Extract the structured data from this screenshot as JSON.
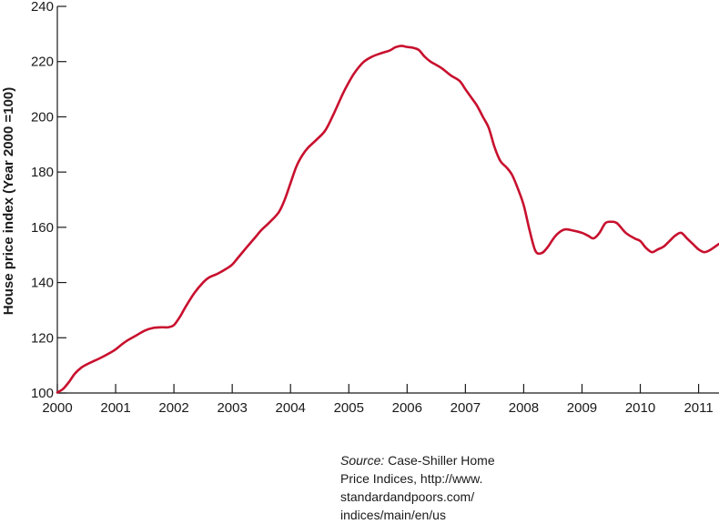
{
  "chart_data": {
    "type": "line",
    "title": "",
    "xlabel": "",
    "ylabel": "House price index (Year 2000 =100)",
    "xlim": [
      2000,
      2011.35
    ],
    "ylim": [
      100,
      240
    ],
    "y_ticks": [
      "100",
      "120",
      "140",
      "160",
      "180",
      "200",
      "220",
      "240"
    ],
    "x_ticks": [
      "2000",
      "2001",
      "2002",
      "2003",
      "2004",
      "2005",
      "2006",
      "2007",
      "2008",
      "2009",
      "2010",
      "2011"
    ],
    "grid": false,
    "line_color": "#c8102e",
    "series": [
      {
        "x": [
          2000.0,
          2000.1,
          2000.2,
          2000.3,
          2000.4,
          2000.5,
          2000.6,
          2000.75,
          2000.9,
          2001.0,
          2001.1,
          2001.2,
          2001.35,
          2001.5,
          2001.65,
          2001.8,
          2001.9,
          2002.0,
          2002.1,
          2002.2,
          2002.35,
          2002.5,
          2002.6,
          2002.75,
          2002.9,
          2003.0,
          2003.1,
          2003.25,
          2003.4,
          2003.5,
          2003.65,
          2003.8,
          2003.9,
          2004.0,
          2004.1,
          2004.2,
          2004.3,
          2004.45,
          2004.6,
          2004.75,
          2004.9,
          2005.0,
          2005.1,
          2005.25,
          2005.4,
          2005.55,
          2005.7,
          2005.8,
          2005.9,
          2006.0,
          2006.1,
          2006.2,
          2006.3,
          2006.4,
          2006.5,
          2006.6,
          2006.75,
          2006.9,
          2007.0,
          2007.1,
          2007.2,
          2007.3,
          2007.4,
          2007.5,
          2007.6,
          2007.7,
          2007.8,
          2007.9,
          2008.0,
          2008.1,
          2008.2,
          2008.3,
          2008.4,
          2008.55,
          2008.7,
          2008.85,
          2009.0,
          2009.1,
          2009.2,
          2009.3,
          2009.4,
          2009.5,
          2009.6,
          2009.75,
          2009.9,
          2010.0,
          2010.1,
          2010.2,
          2010.3,
          2010.4,
          2010.5,
          2010.6,
          2010.7,
          2010.8,
          2010.9,
          2011.0,
          2011.1,
          2011.2,
          2011.35
        ],
        "y": [
          100.2,
          101.5,
          104.0,
          107.0,
          109.0,
          110.3,
          111.3,
          112.8,
          114.5,
          115.8,
          117.5,
          119.0,
          120.8,
          122.6,
          123.6,
          123.8,
          123.8,
          124.6,
          127.5,
          131.2,
          136.2,
          140.0,
          141.8,
          143.2,
          145.0,
          146.5,
          149.0,
          152.8,
          156.5,
          159.0,
          162.0,
          165.5,
          170.0,
          176.0,
          182.0,
          186.0,
          188.8,
          191.8,
          195.2,
          201.5,
          208.5,
          212.5,
          216.0,
          219.8,
          221.8,
          223.0,
          224.0,
          225.2,
          225.7,
          225.3,
          225.0,
          224.2,
          221.8,
          220.0,
          218.8,
          217.5,
          215.0,
          213.0,
          210.0,
          207.0,
          204.0,
          200.0,
          196.0,
          189.0,
          184.0,
          181.8,
          179.0,
          174.0,
          168.0,
          159.0,
          151.5,
          150.6,
          152.5,
          157.0,
          159.2,
          158.8,
          158.0,
          157.0,
          156.0,
          158.0,
          161.5,
          162.0,
          161.5,
          158.0,
          156.0,
          155.0,
          152.5,
          151.0,
          152.0,
          153.0,
          155.0,
          157.0,
          158.0,
          156.0,
          154.0,
          152.0,
          151.0,
          151.8,
          154.0
        ]
      }
    ]
  },
  "source": {
    "label": "Source:",
    "line1": "Case-Shiller Home",
    "line2": "Price Indices, http://www.",
    "line3": "standardandpoors.com/",
    "line4": "indices/main/en/us"
  }
}
